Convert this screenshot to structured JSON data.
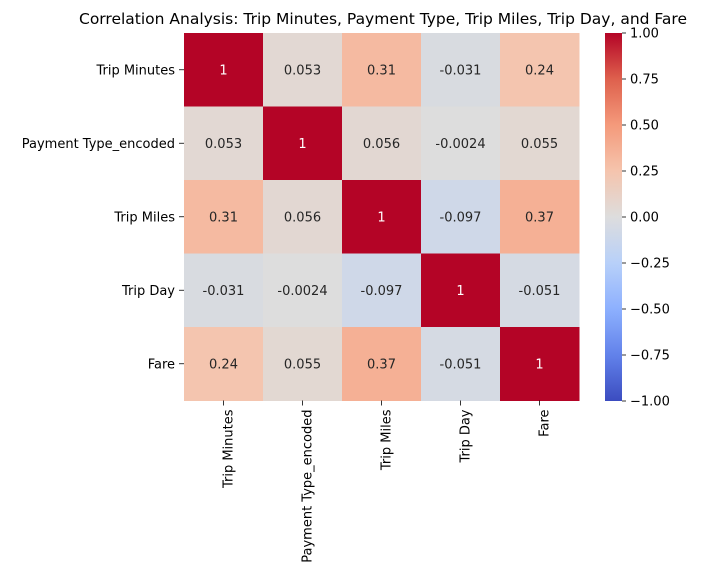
{
  "chart_data": {
    "type": "heatmap",
    "title": "Correlation Analysis: Trip Minutes, Payment Type, Trip Miles, Trip Day, and Fare",
    "xlabel": "",
    "ylabel": "",
    "rows": [
      "Trip Minutes",
      "Payment Type_encoded",
      "Trip Miles",
      "Trip Day",
      "Fare"
    ],
    "columns": [
      "Trip Minutes",
      "Payment Type_encoded",
      "Trip Miles",
      "Trip Day",
      "Fare"
    ],
    "values": [
      [
        1,
        0.053,
        0.31,
        -0.031,
        0.24
      ],
      [
        0.053,
        1,
        0.056,
        -0.0024,
        0.055
      ],
      [
        0.31,
        0.056,
        1,
        -0.097,
        0.37
      ],
      [
        -0.031,
        -0.0024,
        -0.097,
        1,
        -0.051
      ],
      [
        0.24,
        0.055,
        0.37,
        -0.051,
        1
      ]
    ],
    "value_labels": [
      [
        "1",
        "0.053",
        "0.31",
        "-0.031",
        "0.24"
      ],
      [
        "0.053",
        "1",
        "0.056",
        "-0.0024",
        "0.055"
      ],
      [
        "0.31",
        "0.056",
        "1",
        "-0.097",
        "0.37"
      ],
      [
        "-0.031",
        "-0.0024",
        "-0.097",
        "1",
        "-0.051"
      ],
      [
        "0.24",
        "0.055",
        "0.37",
        "-0.051",
        "1"
      ]
    ],
    "colormap": "coolwarm",
    "vmin": -1,
    "vmax": 1,
    "colorbar_ticks": [
      "1.00",
      "0.75",
      "0.50",
      "0.25",
      "0.00",
      "−0.25",
      "−0.50",
      "−0.75",
      "−1.00"
    ],
    "colorbar_tick_values": [
      1,
      0.75,
      0.5,
      0.25,
      0,
      -0.25,
      -0.5,
      -0.75,
      -1
    ]
  }
}
